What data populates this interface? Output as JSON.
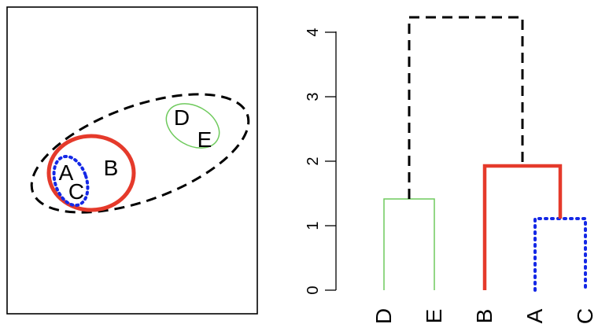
{
  "colors": {
    "black": "#000000",
    "red": "#e53a2b",
    "blue": "#1428e6",
    "green": "#6fca5d"
  },
  "left_panel": {
    "points": [
      {
        "label": "A"
      },
      {
        "label": "B"
      },
      {
        "label": "C"
      },
      {
        "label": "D"
      },
      {
        "label": "E"
      }
    ],
    "clusters": [
      {
        "members": "A,C",
        "color": "#1428e6",
        "style": "dotted"
      },
      {
        "members": "A,B,C",
        "color": "#e53a2b",
        "style": "solid-thick"
      },
      {
        "members": "D,E",
        "color": "#6fca5d",
        "style": "solid-thin"
      },
      {
        "members": "A,B,C,D,E",
        "color": "#000000",
        "style": "dashed"
      }
    ]
  },
  "dendrogram": {
    "leaves": [
      "D",
      "E",
      "B",
      "A",
      "C"
    ],
    "y_ticks": [
      "0",
      "1",
      "2",
      "3",
      "4"
    ],
    "merges": [
      {
        "members": "A,C",
        "height": 1.12,
        "color": "#1428e6",
        "style": "dotted"
      },
      {
        "members": "D,E",
        "height": 1.42,
        "color": "#6fca5d",
        "style": "solid-thin"
      },
      {
        "members": "B,(A,C)",
        "height": 1.92,
        "color": "#e53a2b",
        "style": "solid-thick"
      },
      {
        "members": "(D,E),(B,A,C)",
        "height": 4.22,
        "color": "#000000",
        "style": "dashed"
      }
    ]
  }
}
